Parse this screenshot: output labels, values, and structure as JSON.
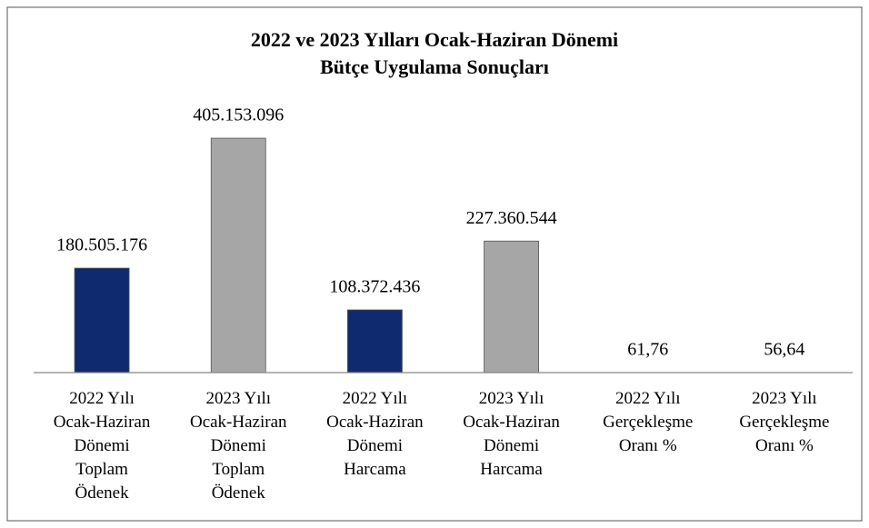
{
  "chart_data": {
    "type": "bar",
    "title": [
      "2022 ve 2023 Yılları Ocak-Haziran Dönemi",
      "Bütçe Uygulama Sonuçları"
    ],
    "categories": [
      "2022 Yılı\nOcak-Haziran\nDönemi\nToplam\nÖdenek",
      "2023 Yılı\nOcak-Haziran\nDönemi\nToplam\nÖdenek",
      "2022 Yılı\nOcak-Haziran\nDönemi\nHarcama",
      "2023 Yılı\nOcak-Haziran\nDönemi\nHarcama",
      "2022 Yılı\nGerçekleşme\nOranı %",
      "2023 Yılı\nGerçekleşme\nOranı %"
    ],
    "values": [
      180505176,
      405153096,
      108372436,
      227360544,
      61.76,
      56.64
    ],
    "value_labels": [
      "180.505.176",
      "405.153.096",
      "108.372.436",
      "227.360.544",
      "61,76",
      "56,64"
    ],
    "colors": [
      "#0f2a6e",
      "#a6a6a6",
      "#0f2a6e",
      "#a6a6a6",
      "#0f2a6e",
      "#a6a6a6"
    ],
    "ylim": [
      0,
      450000000
    ]
  }
}
